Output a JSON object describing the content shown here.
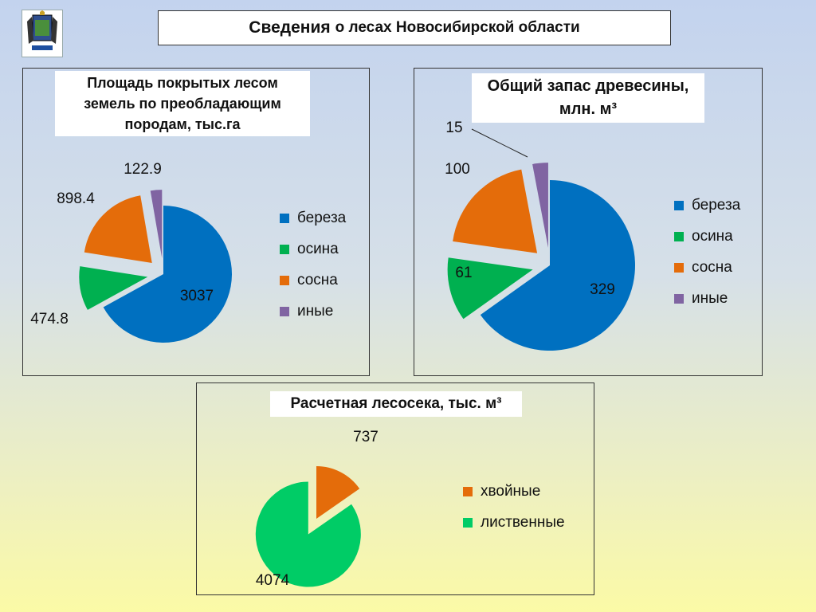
{
  "header": {
    "title_bold": "Сведения",
    "title_rest": "о лесах Новосибирской области"
  },
  "emblem": {
    "icon": "coat-of-arms-icon"
  },
  "colors": {
    "береза": "#0070c0",
    "осина": "#00b050",
    "сосна": "#e46c0a",
    "иные": "#8064a2",
    "хвойные": "#e46c0a",
    "лиственные": "#00cc66"
  },
  "chart_data": [
    {
      "type": "pie",
      "title": "Площадь покрытых лесом земель по преобладающим породам, тыс.га",
      "title_lines": [
        "Площадь покрытых лесом",
        "земель по преобладающим",
        "породам, тыс.га"
      ],
      "categories": [
        "береза",
        "осина",
        "сосна",
        "иные"
      ],
      "values": [
        3037,
        474.8,
        898.4,
        122.9
      ],
      "value_labels": [
        "3037",
        "474.8",
        "898.4",
        "122.9"
      ],
      "legend": "right"
    },
    {
      "type": "pie",
      "title": "Общий запас древесины, млн. м³",
      "title_lines": [
        "Общий запас древесины,",
        "млн. м³"
      ],
      "categories": [
        "береза",
        "осина",
        "сосна",
        "иные"
      ],
      "values": [
        329,
        61,
        100,
        15
      ],
      "value_labels": [
        "329",
        "61",
        "100",
        "15"
      ],
      "legend": "right"
    },
    {
      "type": "pie",
      "title": "Расчетная лесосека, тыс. м³",
      "title_lines": [
        "Расчетная лесосека, тыс. м³"
      ],
      "categories": [
        "хвойные",
        "лиственные"
      ],
      "values": [
        737,
        4074
      ],
      "value_labels": [
        "737",
        "4074"
      ],
      "legend": "right"
    }
  ]
}
